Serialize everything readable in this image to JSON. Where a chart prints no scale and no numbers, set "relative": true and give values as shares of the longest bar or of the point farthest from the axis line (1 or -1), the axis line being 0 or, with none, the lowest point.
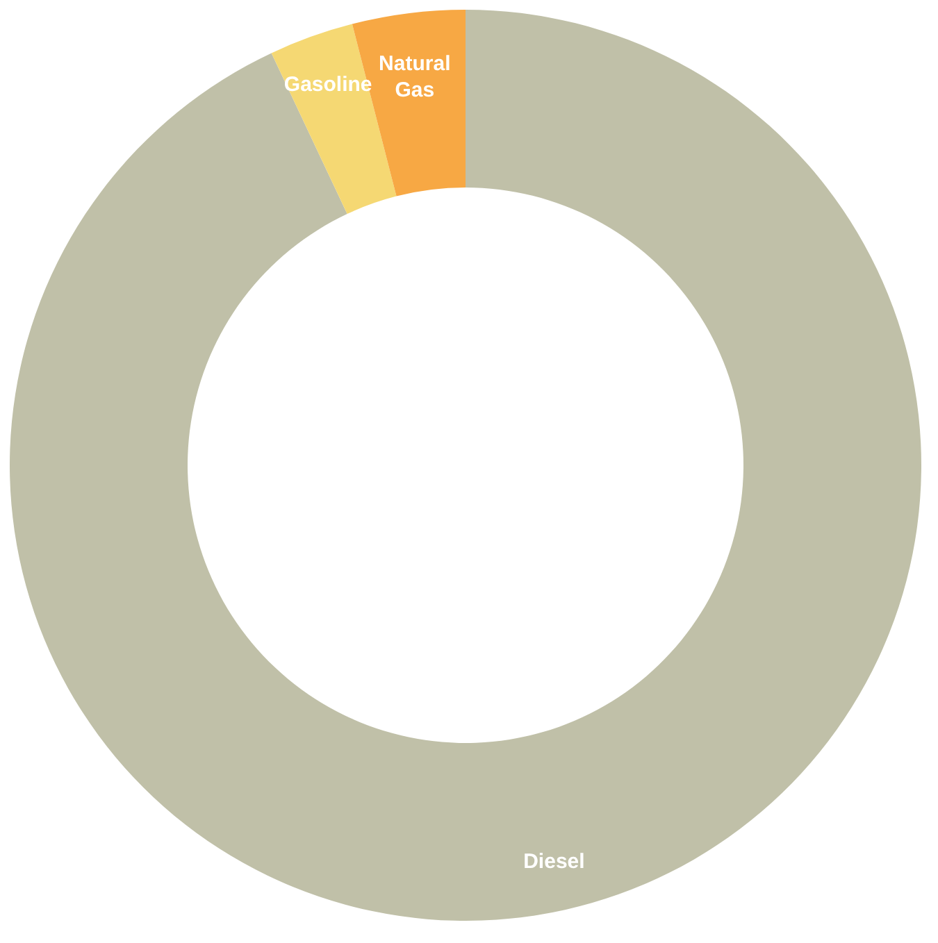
{
  "chart_data": {
    "type": "donut",
    "relative": true,
    "categories": [
      "Diesel",
      "Gasoline",
      "Natural Gas"
    ],
    "values": [
      93,
      3,
      4
    ],
    "colors": [
      "#c0c0a8",
      "#f5d873",
      "#f7a844"
    ],
    "legend": false
  }
}
